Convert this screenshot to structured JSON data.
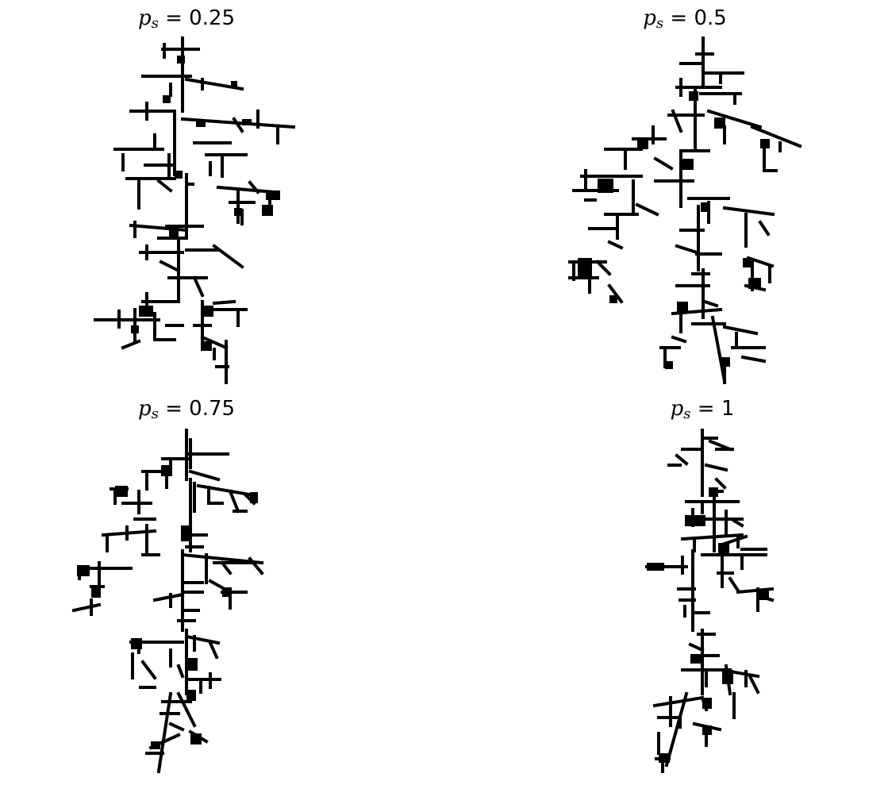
{
  "figure": {
    "panels": [
      {
        "symbol": "p",
        "subscript": "s",
        "equals": " = ",
        "value": "0.25"
      },
      {
        "symbol": "p",
        "subscript": "s",
        "equals": " = ",
        "value": "0.5"
      },
      {
        "symbol": "p",
        "subscript": "s",
        "equals": " = ",
        "value": "0.75"
      },
      {
        "symbol": "p",
        "subscript": "s",
        "equals": " = ",
        "value": "1"
      }
    ],
    "colors": {
      "cluster": "#000000",
      "background": "#ffffff"
    }
  }
}
